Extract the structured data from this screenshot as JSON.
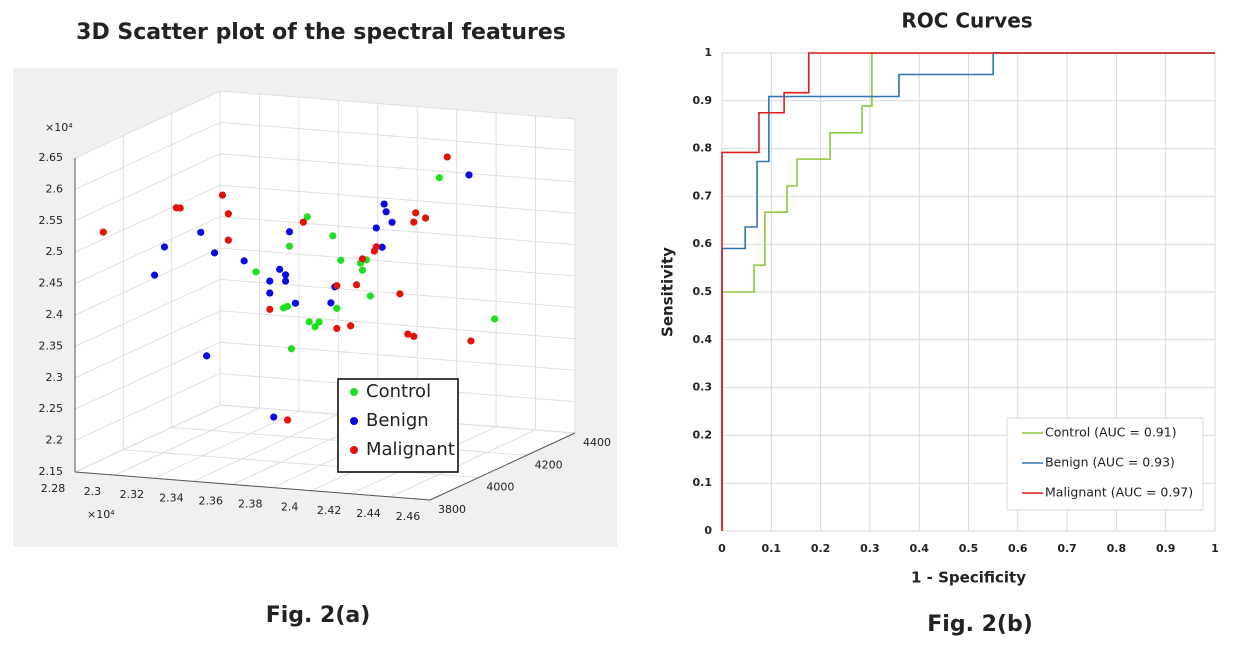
{
  "chart_data": [
    {
      "type": "scatter3d",
      "title": "3D Scatter plot of the spectral features",
      "caption": "Fig. 2(a)",
      "xlim": [
        2.28,
        2.46
      ],
      "xticks": [
        2.28,
        2.3,
        2.32,
        2.34,
        2.36,
        2.38,
        2.4,
        2.42,
        2.44,
        2.46
      ],
      "x_multiplier": "×10⁴",
      "ylim": [
        3800,
        4400
      ],
      "yticks": [
        3800,
        4000,
        4200,
        4400
      ],
      "zlim": [
        2.15,
        2.65
      ],
      "zticks": [
        2.15,
        2.2,
        2.25,
        2.3,
        2.35,
        2.4,
        2.45,
        2.5,
        2.55,
        2.6,
        2.65
      ],
      "z_multiplier": "×10⁴",
      "grid": true,
      "series": [
        {
          "name": "Control",
          "color": "#1fe01f",
          "x": [
            2.361,
            2.352,
            2.335,
            2.378,
            2.374,
            2.391,
            2.389,
            2.388,
            2.393,
            2.351,
            2.349,
            2.362,
            2.365,
            2.367,
            2.376,
            2.353,
            2.428,
            2.456
          ],
          "y": [
            4100,
            4100,
            4100,
            4100,
            4100,
            4100,
            4100,
            4100,
            4100,
            4100,
            4100,
            4100,
            4100,
            4100,
            4100,
            4100,
            4100,
            4100
          ],
          "z": [
            2.523,
            2.474,
            2.429,
            2.458,
            2.496,
            2.462,
            2.445,
            2.456,
            2.405,
            2.378,
            2.375,
            2.356,
            2.349,
            2.357,
            2.381,
            2.311,
            2.602,
            2.384
          ]
        },
        {
          "name": "Benign",
          "color": "#0a0ae6",
          "x": [
            2.443,
            2.4,
            2.401,
            2.404,
            2.396,
            2.399,
            2.318,
            2.313,
            2.307,
            2.314,
            2.329,
            2.347,
            2.35,
            2.342,
            2.35,
            2.342,
            2.355,
            2.352,
            2.373,
            2.375,
            2.31,
            2.344
          ],
          "y": [
            4100,
            4100,
            4100,
            4100,
            4100,
            4100,
            3860,
            3860,
            4100,
            4100,
            4100,
            4100,
            4100,
            4100,
            4100,
            4100,
            4100,
            4100,
            4100,
            4100,
            4100,
            4100
          ],
          "z": [
            2.61,
            2.553,
            2.541,
            2.525,
            2.514,
            2.484,
            2.507,
            2.461,
            2.485,
            2.454,
            2.445,
            2.436,
            2.428,
            2.416,
            2.418,
            2.397,
            2.384,
            2.497,
            2.389,
            2.415,
            2.289,
            2.2
          ]
        },
        {
          "name": "Malignant",
          "color": "#e3120b",
          "x": [
            2.432,
            2.287,
            2.324,
            2.326,
            2.318,
            2.321,
            2.321,
            2.359,
            2.415,
            2.416,
            2.421,
            2.396,
            2.395,
            2.389,
            2.376,
            2.386,
            2.408,
            2.342,
            2.376,
            2.383,
            2.412,
            2.415,
            2.444,
            2.351
          ],
          "y": [
            4100,
            3860,
            3860,
            3860,
            4100,
            4100,
            4100,
            4100,
            4100,
            4100,
            4100,
            4100,
            4100,
            4100,
            4100,
            4100,
            4100,
            4100,
            4100,
            4100,
            4100,
            4100,
            4100,
            4100
          ],
          "z": [
            2.636,
            2.523,
            2.571,
            2.571,
            2.547,
            2.518,
            2.476,
            2.514,
            2.528,
            2.543,
            2.536,
            2.484,
            2.477,
            2.463,
            2.417,
            2.421,
            2.412,
            2.371,
            2.349,
            2.355,
            2.349,
            2.346,
            2.346,
            2.197
          ]
        }
      ]
    },
    {
      "type": "line",
      "title": "ROC Curves",
      "caption": "Fig. 2(b)",
      "xlabel": "1 - Specificity",
      "ylabel": "Sensitivity",
      "xlim": [
        0,
        1
      ],
      "xticks": [
        0,
        0.1,
        0.2,
        0.3,
        0.4,
        0.5,
        0.6,
        0.7,
        0.8,
        0.9,
        1
      ],
      "ylim": [
        0,
        1
      ],
      "yticks": [
        0,
        0.1,
        0.2,
        0.3,
        0.4,
        0.5,
        0.6,
        0.7,
        0.8,
        0.9,
        1
      ],
      "grid": true,
      "legend": "lower right",
      "series": [
        {
          "name": "Control (AUC = 0.91)",
          "color": "#8cc63f",
          "x": [
            0,
            0,
            0.065,
            0.065,
            0.087,
            0.087,
            0.132,
            0.132,
            0.152,
            0.152,
            0.219,
            0.219,
            0.284,
            0.284,
            0.304,
            0.304,
            1
          ],
          "values": [
            0,
            0.5,
            0.5,
            0.556,
            0.556,
            0.667,
            0.667,
            0.722,
            0.722,
            0.778,
            0.778,
            0.833,
            0.833,
            0.889,
            0.889,
            1,
            1
          ]
        },
        {
          "name": "Benign (AUC = 0.93)",
          "color": "#2e75b6",
          "x": [
            0,
            0,
            0.047,
            0.047,
            0.071,
            0.071,
            0.095,
            0.095,
            0.359,
            0.359,
            0.55,
            0.55,
            1
          ],
          "values": [
            0,
            0.591,
            0.591,
            0.636,
            0.636,
            0.773,
            0.773,
            0.909,
            0.909,
            0.955,
            0.955,
            1,
            1
          ]
        },
        {
          "name": "Malignant (AUC = 0.97)",
          "color": "#e31a1c",
          "x": [
            0,
            0,
            0.075,
            0.075,
            0.126,
            0.126,
            0.176,
            0.176,
            1
          ],
          "values": [
            0,
            0.792,
            0.792,
            0.875,
            0.875,
            0.917,
            0.917,
            1,
            1
          ]
        }
      ]
    }
  ]
}
